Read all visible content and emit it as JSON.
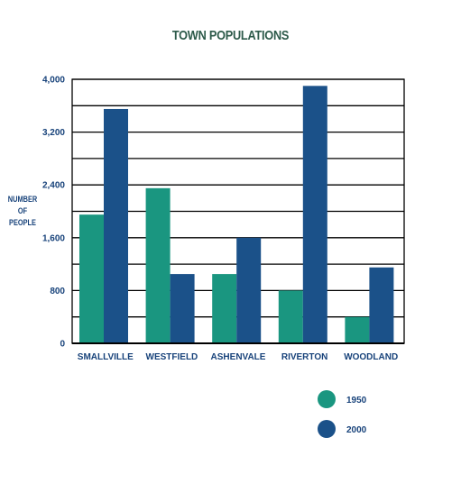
{
  "chart_data": {
    "type": "bar",
    "title": "TOWN POPULATIONS",
    "ylabel_lines": [
      "NUMBER",
      "OF",
      "PEOPLE"
    ],
    "xlabel": "",
    "categories": [
      "SMALLVILLE",
      "WESTFIELD",
      "ASHENVALE",
      "RIVERTON",
      "WOODLAND"
    ],
    "ylim": [
      0,
      4000
    ],
    "yticks": [
      0,
      800,
      1600,
      2400,
      3200,
      4000
    ],
    "ytick_labels": [
      "0",
      "800",
      "1,600",
      "2,400",
      "3,200",
      "4,000"
    ],
    "grid": true,
    "legend_position": "bottom-right",
    "series": [
      {
        "name": "1950",
        "color": "#1a9680",
        "values": [
          1950,
          2350,
          1050,
          800,
          400
        ]
      },
      {
        "name": "2000",
        "color": "#1b5189",
        "values": [
          3550,
          1050,
          1600,
          3900,
          1150
        ]
      }
    ]
  }
}
